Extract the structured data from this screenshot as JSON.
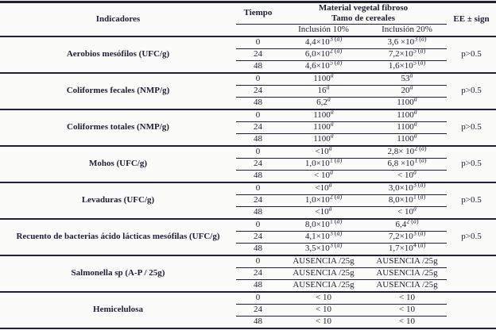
{
  "colors": {
    "ink": "#1e1e34",
    "background": "#fbfbf9"
  },
  "header": {
    "indicadores": "Indicadores",
    "tiempo": "Tiempo",
    "material_line1": "Material vegetal fibroso",
    "material_line2": "Tamo de cereales",
    "inclusion10": "Inclusión 10%",
    "inclusion20": "Inclusión 20%",
    "ee": "EE ± sign"
  },
  "table": {
    "groups": [
      {
        "indicator": "Aerobios mesófilos (UFC/g)",
        "ee": "p>0.5",
        "rows": [
          {
            "t": "0",
            "v10": "4,4×10^{3 (a)}",
            "v20": "3,6 ×10^{3 (a)}"
          },
          {
            "t": "24",
            "v10": "6,0×10^{2 (a)}",
            "v20": "7,2×10^{5 (a)}"
          },
          {
            "t": "48",
            "v10": "4,6×10^{5 (a)}",
            "v20": "1,6×10^{5 (a)}"
          }
        ]
      },
      {
        "indicator": "Coliformes fecales (NMP/g)",
        "ee": "p>0.5",
        "rows": [
          {
            "t": "0",
            "v10": "1100^{a}",
            "v20": "53^{a}"
          },
          {
            "t": "24",
            "v10": "16^{a}",
            "v20": "20^{a}"
          },
          {
            "t": "48",
            "v10": "6,2^{a}",
            "v20": "1100^{a}"
          }
        ]
      },
      {
        "indicator": "Coliformes totales (NMP/g)",
        "ee": "p>0.5",
        "rows": [
          {
            "t": "0",
            "v10": "1100^{a}",
            "v20": "1100^{a}"
          },
          {
            "t": "24",
            "v10": "1100^{a}",
            "v20": "1100^{a}"
          },
          {
            "t": "48",
            "v10": "1100^{a}",
            "v20": "1100^{a}"
          }
        ]
      },
      {
        "indicator": "Mohos (UFC/g)",
        "ee": "p>0.5",
        "rows": [
          {
            "t": "0",
            "v10": "<10^{a}",
            "v20": "2,8× 10^{2 (a)}"
          },
          {
            "t": "24",
            "v10": "1,0×10^{1 (a)}",
            "v20": "6,8 ×10^{1 (a)}"
          },
          {
            "t": "48",
            "v10": "< 10^{a}",
            "v20": "< 10^{a}"
          }
        ]
      },
      {
        "indicator": "Levaduras (UFC/g)",
        "ee": "p>0.5",
        "rows": [
          {
            "t": "0",
            "v10": "<10^{a}",
            "v20": "3,0×10^{3 (a)}"
          },
          {
            "t": "24",
            "v10": "1,0×10^{2 (a)}",
            "v20": "8,0×10^{1 (a)}"
          },
          {
            "t": "48",
            "v10": "<10^{a}",
            "v20": "< 10^{a}"
          }
        ]
      },
      {
        "indicator": "Recuento de bacterias ácido lácticas mesófilas (UFC/g)",
        "ee": "p>0.5",
        "rows": [
          {
            "t": "0",
            "v10": "8,0×10^{1 (a)}",
            "v20": "6,4^{2 (a)}"
          },
          {
            "t": "24",
            "v10": "4,1×10^{3 (a)}",
            "v20": "7,2×10^{3 (a)}"
          },
          {
            "t": "48",
            "v10": "3,5×10^{3 (a)}",
            "v20": "1,7×10^{4 (a)}"
          }
        ]
      },
      {
        "indicator": "Salmonella sp (A-P / 25g)",
        "ee": "",
        "rows": [
          {
            "t": "0",
            "v10": "AUSENCIA /25g",
            "v20": "AUSENCIA /25g"
          },
          {
            "t": "24",
            "v10": "AUSENCIA /25g",
            "v20": "AUSENCIA /25g"
          },
          {
            "t": "48",
            "v10": "AUSENCIA /25g",
            "v20": "AUSENCIA /25g"
          }
        ]
      },
      {
        "indicator": "Hemicelulosa",
        "ee": "",
        "rows": [
          {
            "t": "0",
            "v10": "< 10",
            "v20": "< 10"
          },
          {
            "t": "24",
            "v10": "< 10",
            "v20": "< 10"
          },
          {
            "t": "48",
            "v10": "< 10",
            "v20": "< 10"
          }
        ]
      }
    ]
  }
}
